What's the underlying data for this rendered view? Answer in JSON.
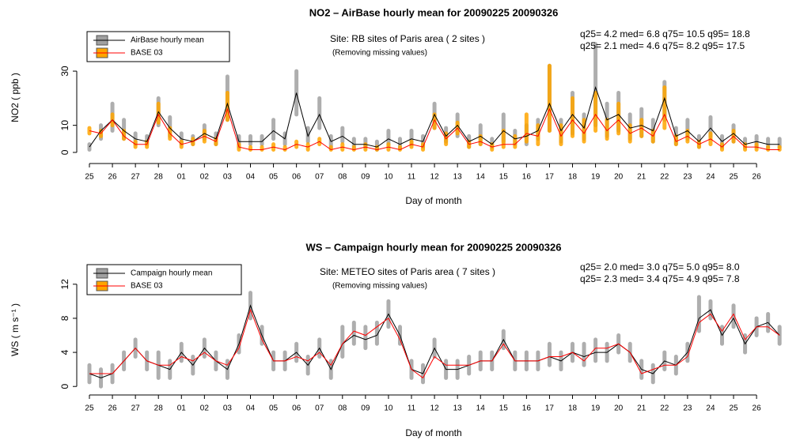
{
  "chart_data": [
    {
      "type": "line",
      "title": "NO2 – AirBase hourly mean for 20090225 20090326",
      "subtitle": "Site:  RB sites  of Paris area  ( 2 sites )",
      "note": "(Removing missing values)",
      "stats": [
        "q25= 4.2 med= 6.8 q75= 10.5 q95= 18.8",
        "q25= 2.1 med= 4.6 q75= 8.2 q95= 17.5"
      ],
      "xlabel": "Day of month",
      "ylabel": "NO2 ( ppb )",
      "legend": "top-left",
      "x": [
        0,
        0.5,
        1,
        1.5,
        2,
        2.5,
        3,
        3.5,
        4,
        4.5,
        5,
        5.5,
        6,
        6.5,
        7,
        7.5,
        8,
        8.5,
        9,
        9.5,
        10,
        10.5,
        11,
        11.5,
        12,
        12.5,
        13,
        13.5,
        14,
        14.5,
        15,
        15.5,
        16,
        16.5,
        17,
        17.5,
        18,
        18.5,
        19,
        19.5,
        20,
        20.5,
        21,
        21.5,
        22,
        22.5,
        23,
        23.5,
        24,
        24.5,
        25,
        25.5,
        26,
        26.5,
        27,
        27.5,
        28,
        28.5,
        29,
        29.5,
        30
      ],
      "xlim": [
        -0.55,
        30.51
      ],
      "xticks": [
        {
          "value": 0,
          "label": "25"
        },
        {
          "value": 1,
          "label": "26"
        },
        {
          "value": 2,
          "label": "27"
        },
        {
          "value": 3,
          "label": "28"
        },
        {
          "value": 4,
          "label": "01"
        },
        {
          "value": 5,
          "label": "02"
        },
        {
          "value": 6,
          "label": "03"
        },
        {
          "value": 7,
          "label": "04"
        },
        {
          "value": 8,
          "label": "05"
        },
        {
          "value": 9,
          "label": "06"
        },
        {
          "value": 10,
          "label": "07"
        },
        {
          "value": 11,
          "label": "08"
        },
        {
          "value": 12,
          "label": "09"
        },
        {
          "value": 13,
          "label": "10"
        },
        {
          "value": 14,
          "label": "11"
        },
        {
          "value": 15,
          "label": "12"
        },
        {
          "value": 16,
          "label": "13"
        },
        {
          "value": 17,
          "label": "14"
        },
        {
          "value": 18,
          "label": "15"
        },
        {
          "value": 19,
          "label": "16"
        },
        {
          "value": 20,
          "label": "17"
        },
        {
          "value": 21,
          "label": "18"
        },
        {
          "value": 22,
          "label": "19"
        },
        {
          "value": 23,
          "label": "20"
        },
        {
          "value": 24,
          "label": "21"
        },
        {
          "value": 25,
          "label": "22"
        },
        {
          "value": 26,
          "label": "23"
        },
        {
          "value": 27,
          "label": "24"
        },
        {
          "value": 28,
          "label": "25"
        },
        {
          "value": 29,
          "label": "26"
        }
      ],
      "ylim": [
        -4.1,
        44.6
      ],
      "yticks": [
        0,
        10,
        30
      ],
      "series": [
        {
          "name": "AirBase hourly mean",
          "color": "#000000",
          "band_color": "#a0a0a0",
          "values": [
            2,
            8,
            12,
            8,
            5,
            4,
            15,
            9,
            5,
            4,
            7,
            5,
            18,
            4,
            4,
            4,
            8,
            5,
            22,
            6,
            14,
            4,
            6,
            3,
            3,
            2,
            5,
            3,
            5,
            4,
            14,
            6,
            10,
            4,
            6,
            3,
            8,
            5,
            6,
            8,
            18,
            8,
            14,
            9,
            24,
            12,
            14,
            9,
            10,
            8,
            20,
            6,
            8,
            4,
            9,
            4,
            7,
            3,
            4,
            3,
            3
          ],
          "band_min": [
            1,
            5,
            8,
            5,
            3,
            3,
            10,
            6,
            3,
            3,
            5,
            3,
            12,
            2,
            3,
            3,
            5,
            3,
            14,
            4,
            9,
            2,
            4,
            2,
            2,
            1,
            3,
            2,
            3,
            2,
            9,
            4,
            6,
            2,
            3,
            2,
            4,
            3,
            3,
            5,
            8,
            4,
            7,
            5,
            10,
            6,
            8,
            5,
            6,
            4,
            12,
            3,
            5,
            2,
            6,
            2,
            4,
            2,
            2,
            2,
            2
          ],
          "band_max": [
            3,
            10,
            18,
            12,
            7,
            6,
            20,
            13,
            7,
            6,
            10,
            7,
            28,
            6,
            6,
            6,
            12,
            7,
            30,
            9,
            20,
            6,
            9,
            5,
            5,
            4,
            8,
            5,
            8,
            6,
            18,
            9,
            14,
            6,
            10,
            5,
            14,
            8,
            10,
            12,
            32,
            12,
            22,
            14,
            40,
            18,
            22,
            14,
            16,
            12,
            26,
            9,
            12,
            6,
            13,
            6,
            10,
            5,
            6,
            5,
            5
          ]
        },
        {
          "name": "BASE 03",
          "color": "#ff0000",
          "band_color": "#ffa500",
          "values": [
            8,
            7,
            12,
            6,
            3,
            3,
            14,
            7,
            3,
            4,
            6,
            4,
            16,
            2,
            1,
            1,
            2,
            1,
            3,
            2,
            4,
            1,
            2,
            1,
            2,
            1,
            2,
            1,
            3,
            2,
            12,
            5,
            9,
            3,
            4,
            2,
            3,
            3,
            7,
            6,
            16,
            6,
            12,
            7,
            14,
            8,
            12,
            7,
            9,
            6,
            14,
            4,
            6,
            3,
            5,
            2,
            6,
            2,
            2,
            1,
            1
          ],
          "band_min": [
            7,
            6,
            10,
            5,
            2,
            2,
            11,
            5,
            2,
            3,
            4,
            3,
            12,
            1,
            1,
            1,
            1,
            1,
            2,
            1,
            3,
            1,
            1,
            1,
            1,
            1,
            1,
            1,
            2,
            1,
            9,
            3,
            7,
            2,
            3,
            1,
            2,
            2,
            4,
            3,
            8,
            3,
            6,
            4,
            8,
            5,
            7,
            4,
            6,
            4,
            9,
            3,
            4,
            2,
            3,
            1,
            4,
            1,
            1,
            1,
            1
          ],
          "band_max": [
            9,
            8,
            14,
            8,
            4,
            4,
            18,
            9,
            4,
            5,
            8,
            5,
            22,
            3,
            2,
            2,
            3,
            2,
            4,
            3,
            5,
            2,
            3,
            2,
            3,
            2,
            3,
            2,
            4,
            3,
            14,
            7,
            11,
            4,
            6,
            3,
            8,
            6,
            14,
            10,
            32,
            10,
            20,
            12,
            22,
            12,
            18,
            10,
            12,
            8,
            24,
            6,
            8,
            4,
            7,
            3,
            8,
            3,
            3,
            2,
            2
          ]
        }
      ]
    },
    {
      "type": "line",
      "title": "WS – Campaign hourly mean for 20090225 20090326",
      "subtitle": "Site:  METEO sites  of Paris area  ( 7 sites )",
      "note": "(Removing missing values)",
      "stats": [
        "q25= 2.0 med= 3.0 q75= 5.0 q95= 8.0",
        "q25= 2.3 med= 3.4 q75= 4.9 q95= 7.8"
      ],
      "xlabel": "Day of month",
      "ylabel": "WS ( m s⁻¹ )",
      "legend": "top-left",
      "x": [
        0,
        0.5,
        1,
        1.5,
        2,
        2.5,
        3,
        3.5,
        4,
        4.5,
        5,
        5.5,
        6,
        6.5,
        7,
        7.5,
        8,
        8.5,
        9,
        9.5,
        10,
        10.5,
        11,
        11.5,
        12,
        12.5,
        13,
        13.5,
        14,
        14.5,
        15,
        15.5,
        16,
        16.5,
        17,
        17.5,
        18,
        18.5,
        19,
        19.5,
        20,
        20.5,
        21,
        21.5,
        22,
        22.5,
        23,
        23.5,
        24,
        24.5,
        25,
        25.5,
        26,
        26.5,
        27,
        27.5,
        28,
        28.5,
        29,
        29.5,
        30
      ],
      "xlim": [
        -0.55,
        30.51
      ],
      "xticks": [
        {
          "value": 0,
          "label": "25"
        },
        {
          "value": 1,
          "label": "26"
        },
        {
          "value": 2,
          "label": "27"
        },
        {
          "value": 3,
          "label": "28"
        },
        {
          "value": 4,
          "label": "01"
        },
        {
          "value": 5,
          "label": "02"
        },
        {
          "value": 6,
          "label": "03"
        },
        {
          "value": 7,
          "label": "04"
        },
        {
          "value": 8,
          "label": "05"
        },
        {
          "value": 9,
          "label": "06"
        },
        {
          "value": 10,
          "label": "07"
        },
        {
          "value": 11,
          "label": "08"
        },
        {
          "value": 12,
          "label": "09"
        },
        {
          "value": 13,
          "label": "10"
        },
        {
          "value": 14,
          "label": "11"
        },
        {
          "value": 15,
          "label": "12"
        },
        {
          "value": 16,
          "label": "13"
        },
        {
          "value": 17,
          "label": "14"
        },
        {
          "value": 18,
          "label": "15"
        },
        {
          "value": 19,
          "label": "16"
        },
        {
          "value": 20,
          "label": "17"
        },
        {
          "value": 21,
          "label": "18"
        },
        {
          "value": 22,
          "label": "19"
        },
        {
          "value": 23,
          "label": "20"
        },
        {
          "value": 24,
          "label": "21"
        },
        {
          "value": 25,
          "label": "22"
        },
        {
          "value": 26,
          "label": "23"
        },
        {
          "value": 27,
          "label": "24"
        },
        {
          "value": 28,
          "label": "25"
        },
        {
          "value": 29,
          "label": "26"
        }
      ],
      "ylim": [
        -1,
        14.3
      ],
      "yticks": [
        0,
        4,
        8,
        12
      ],
      "series": [
        {
          "name": "Campaign hourly mean",
          "color": "#000000",
          "band_color": "#a0a0a0",
          "values": [
            1.5,
            1,
            1.5,
            3,
            4.5,
            3,
            2.5,
            2,
            4,
            2.5,
            4.5,
            3,
            2,
            5,
            9.5,
            6,
            3,
            3,
            4,
            2.5,
            4.5,
            2,
            5,
            6,
            5.5,
            6,
            8.5,
            6,
            2,
            1.5,
            4.5,
            2,
            2,
            2.5,
            3,
            3,
            5.5,
            3,
            3,
            3,
            3.5,
            3,
            4,
            3.5,
            4,
            4,
            5,
            4,
            2,
            1.5,
            3,
            2.5,
            4,
            8,
            9,
            6,
            8,
            5,
            7,
            7.5,
            6
          ],
          "band_min": [
            0.5,
            0,
            0.5,
            2,
            3.5,
            2,
            1,
            1,
            3,
            1.5,
            3.5,
            2,
            1,
            4,
            8,
            5,
            2,
            2,
            3,
            1.5,
            3.5,
            1,
            3.5,
            5,
            4.5,
            5,
            7,
            5,
            1,
            0.5,
            3.5,
            1,
            1,
            1.5,
            2,
            2,
            4.5,
            2,
            2,
            2,
            2.5,
            2,
            3,
            2.5,
            3,
            3,
            4,
            3,
            1,
            0.5,
            2,
            1.5,
            3,
            6.5,
            8,
            5,
            7,
            4,
            6,
            6.5,
            5
          ],
          "band_max": [
            2.5,
            2,
            2.5,
            4,
            5.5,
            4,
            4,
            3,
            5,
            3.5,
            5.5,
            4,
            3,
            6,
            11,
            7,
            4,
            4,
            5,
            3.5,
            5.5,
            3,
            7,
            7.5,
            7,
            7.5,
            10,
            7,
            3,
            2.5,
            5.5,
            3,
            3,
            3.5,
            4,
            4,
            6.5,
            4,
            4,
            4,
            5,
            4,
            5,
            5,
            5.5,
            5,
            6,
            5,
            3,
            2.5,
            4,
            3.5,
            5,
            10.5,
            10,
            7,
            9.5,
            6,
            8,
            8.5,
            7
          ]
        },
        {
          "name": "BASE 03",
          "color": "#ff0000",
          "band_color": "#ffa500",
          "values": [
            1.5,
            1.5,
            1.5,
            3,
            4.5,
            3,
            2.5,
            2.5,
            3.5,
            3,
            4,
            3,
            2.5,
            4.5,
            9,
            5.5,
            3,
            3,
            3.5,
            3,
            4,
            2.5,
            5,
            6.5,
            6,
            7,
            8,
            5.5,
            2,
            1,
            3.5,
            2.5,
            2.5,
            2.5,
            3,
            3,
            5,
            3,
            3,
            3,
            3.5,
            3.5,
            4,
            3,
            4.5,
            4.5,
            5,
            4,
            1.5,
            2,
            2.5,
            2.5,
            3.5,
            7.5,
            8.5,
            6.5,
            8.5,
            5.5,
            7,
            7,
            6
          ]
        }
      ]
    }
  ]
}
